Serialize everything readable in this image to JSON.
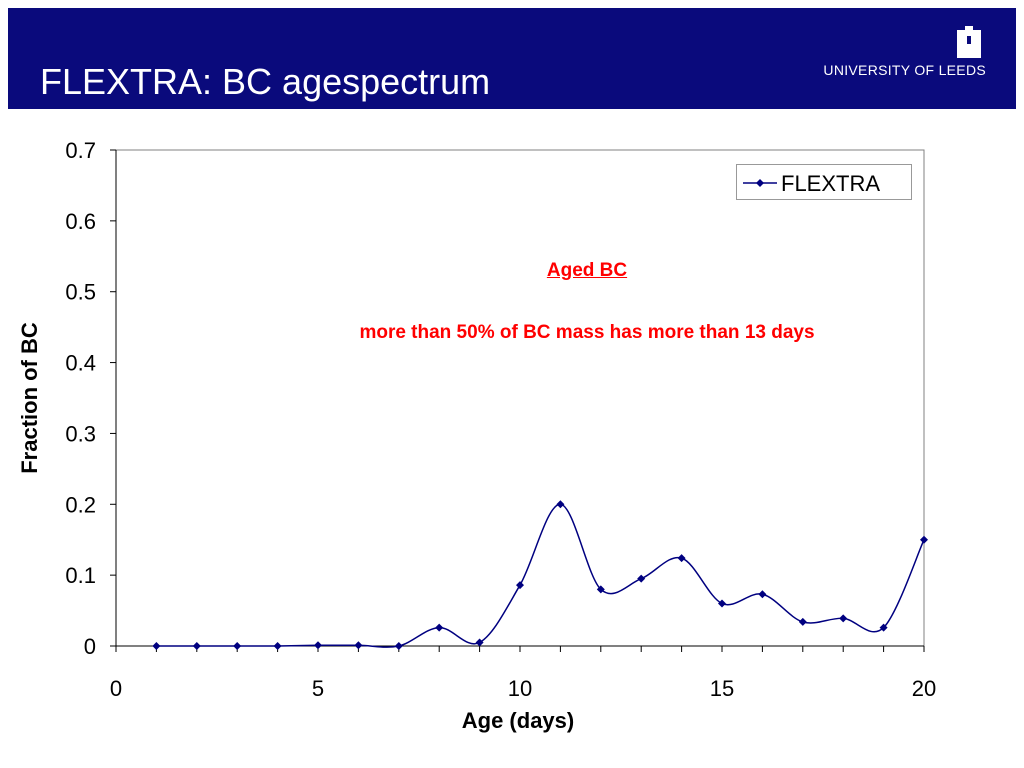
{
  "slide": {
    "title": "FLEXTRA: BC agespectrum",
    "logo_text": "UNIVERSITY OF LEEDS",
    "header_color": "#0a0a7c"
  },
  "annotation": {
    "title": "Aged BC",
    "body": "more than 50% of BC mass has more than 13 days",
    "color": "#ff0000"
  },
  "chart_data": {
    "type": "line",
    "xlabel": "Age (days)",
    "ylabel": "Fraction of BC",
    "xlim": [
      0,
      20
    ],
    "ylim": [
      0,
      0.7
    ],
    "xticks": [
      0,
      5,
      10,
      15,
      20
    ],
    "yticks": [
      0,
      0.1,
      0.2,
      0.3,
      0.4,
      0.5,
      0.6,
      0.7
    ],
    "grid": false,
    "legend_position": "top-right",
    "series": [
      {
        "name": "FLEXTRA",
        "color": "#000080",
        "marker": "diamond",
        "smooth": true,
        "x": [
          1,
          2,
          3,
          4,
          5,
          6,
          7,
          8,
          9,
          10,
          11,
          12,
          13,
          14,
          15,
          16,
          17,
          18,
          19,
          20
        ],
        "y": [
          0,
          0,
          0,
          0,
          0.001,
          0.001,
          0,
          0.026,
          0.005,
          0.086,
          0.2,
          0.08,
          0.095,
          0.124,
          0.06,
          0.073,
          0.034,
          0.039,
          0.026,
          0.15
        ]
      }
    ]
  }
}
